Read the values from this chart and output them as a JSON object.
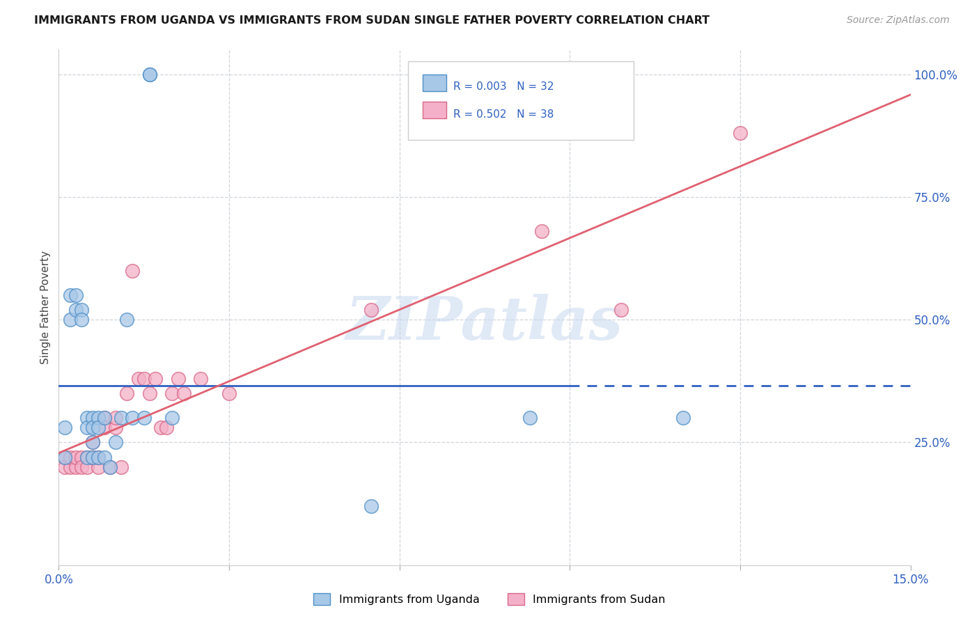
{
  "title": "IMMIGRANTS FROM UGANDA VS IMMIGRANTS FROM SUDAN SINGLE FATHER POVERTY CORRELATION CHART",
  "source": "Source: ZipAtlas.com",
  "ylabel": "Single Father Poverty",
  "xlim": [
    0.0,
    0.15
  ],
  "ylim": [
    0.0,
    1.05
  ],
  "ytick_labels_right": [
    "100.0%",
    "75.0%",
    "50.0%",
    "25.0%"
  ],
  "ytick_positions_right": [
    1.0,
    0.75,
    0.5,
    0.25
  ],
  "uganda_marker_color": "#a8c8e8",
  "sudan_marker_color": "#f4b0c8",
  "uganda_edge_color": "#5090c8",
  "sudan_edge_color": "#d86888",
  "regression_uganda_color": "#3060c0",
  "regression_sudan_color": "#e06070",
  "watermark": "ZIPatlas",
  "watermark_color": "#c8d8f0",
  "grid_color": "#d0d5db",
  "background_color": "#ffffff",
  "uganda_x": [
    0.001,
    0.001,
    0.002,
    0.002,
    0.003,
    0.003,
    0.004,
    0.004,
    0.005,
    0.005,
    0.005,
    0.006,
    0.006,
    0.006,
    0.006,
    0.007,
    0.007,
    0.007,
    0.008,
    0.008,
    0.009,
    0.01,
    0.011,
    0.012,
    0.013,
    0.015,
    0.016,
    0.016,
    0.02,
    0.055,
    0.083,
    0.11
  ],
  "uganda_y": [
    0.28,
    0.22,
    0.55,
    0.5,
    0.55,
    0.52,
    0.52,
    0.5,
    0.3,
    0.28,
    0.22,
    0.3,
    0.28,
    0.25,
    0.22,
    0.3,
    0.28,
    0.22,
    0.3,
    0.22,
    0.2,
    0.25,
    0.3,
    0.5,
    0.3,
    0.3,
    1.0,
    1.0,
    0.3,
    0.12,
    0.3,
    0.3
  ],
  "sudan_x": [
    0.001,
    0.001,
    0.002,
    0.002,
    0.003,
    0.003,
    0.004,
    0.004,
    0.005,
    0.005,
    0.006,
    0.006,
    0.006,
    0.007,
    0.007,
    0.008,
    0.008,
    0.009,
    0.01,
    0.01,
    0.011,
    0.012,
    0.013,
    0.014,
    0.015,
    0.016,
    0.017,
    0.018,
    0.019,
    0.02,
    0.021,
    0.022,
    0.025,
    0.03,
    0.055,
    0.085,
    0.099,
    0.12
  ],
  "sudan_y": [
    0.22,
    0.2,
    0.2,
    0.22,
    0.2,
    0.22,
    0.22,
    0.2,
    0.22,
    0.2,
    0.22,
    0.22,
    0.25,
    0.2,
    0.22,
    0.3,
    0.28,
    0.2,
    0.28,
    0.3,
    0.2,
    0.35,
    0.6,
    0.38,
    0.38,
    0.35,
    0.38,
    0.28,
    0.28,
    0.35,
    0.38,
    0.35,
    0.38,
    0.35,
    0.52,
    0.68,
    0.52,
    0.88
  ],
  "r_uganda": 0.003,
  "n_uganda": 32,
  "r_sudan": 0.502,
  "n_sudan": 38,
  "uganda_line_solid_end": 0.09,
  "uganda_line_dashed_end": 0.15
}
